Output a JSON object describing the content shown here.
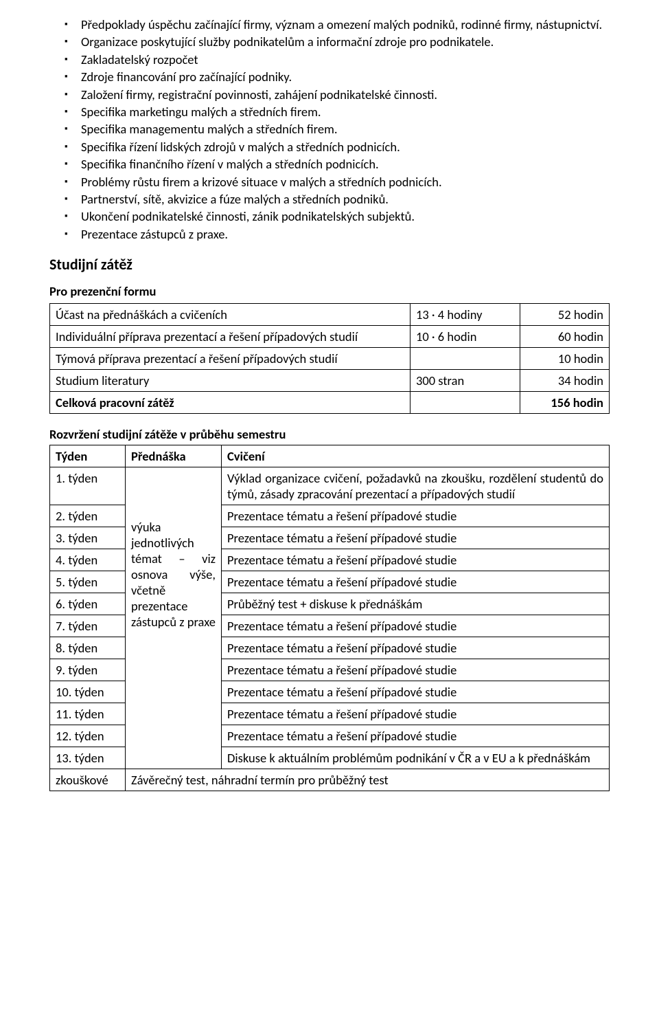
{
  "bullets": [
    "Předpoklady úspěchu začínající firmy, význam a omezení malých podniků, rodinné firmy, nástupnictví.",
    "Organizace poskytující služby podnikatelům a informační zdroje pro podnikatele.",
    "Zakladatelský rozpočet",
    "Zdroje financování pro začínající podniky.",
    "Založení firmy, registrační povinnosti, zahájení podnikatelské činnosti.",
    "Specifika marketingu malých a středních firem.",
    "Specifika managementu malých a středních firem.",
    "Specifika řízení lidských zdrojů v malých a středních podnicích.",
    "Specifika finančního řízení v malých a středních podnicích.",
    "Problémy růstu firem a krizové situace v malých a středních podnicích.",
    "Partnerství, sítě, akvizice a fúze malých a středních podniků.",
    "Ukončení podnikatelské činnosti, zánik podnikatelských subjektů.",
    "Prezentace zástupců z praxe."
  ],
  "section_load_title": "Studijní zátěž",
  "load_sub": "Pro prezenční formu",
  "load_table": {
    "rows": [
      {
        "label": "Účast na přednáškách a cvičeních",
        "mid": "13 · 4 hodiny",
        "right": "52 hodin",
        "bold": false
      },
      {
        "label": "Individuální příprava prezentací a řešení případových studií",
        "mid": "10 · 6 hodin",
        "right": "60 hodin",
        "bold": false
      },
      {
        "label": "Týmová příprava prezentací a řešení případových studií",
        "mid": "",
        "right": "10 hodin",
        "bold": false
      },
      {
        "label": "Studium literatury",
        "mid": "300 stran",
        "right": "34 hodin",
        "bold": false
      },
      {
        "label": "Celková pracovní zátěž",
        "mid": "",
        "right": "156 hodin",
        "bold": true
      }
    ]
  },
  "sched_caption": "Rozvržení studijní zátěže v průběhu semestru",
  "sched_headers": {
    "week": "Týden",
    "lecture": "Přednáška",
    "exercise": "Cvičení"
  },
  "lecture_merged": "výuka jednotlivých témat – viz osnova výše, včetně prezentace zástupců z praxe",
  "sched_rows": [
    {
      "week": "1. týden",
      "ex": "Výklad organizace cvičení, požadavků na zkoušku, rozdělení studentů do týmů, zásady zpracování prezentací a případových studií",
      "justify": true
    },
    {
      "week": "2. týden",
      "ex": "Prezentace tématu a řešení případové studie"
    },
    {
      "week": "3. týden",
      "ex": "Prezentace tématu a řešení případové studie"
    },
    {
      "week": "4. týden",
      "ex": "Prezentace tématu a řešení případové studie"
    },
    {
      "week": "5. týden",
      "ex": "Prezentace tématu a řešení případové studie"
    },
    {
      "week": "6. týden",
      "ex": "Průběžný test + diskuse k přednáškám"
    },
    {
      "week": "7. týden",
      "ex": "Prezentace tématu a řešení případové studie"
    },
    {
      "week": "8. týden",
      "ex": "Prezentace tématu a řešení případové studie"
    },
    {
      "week": "9. týden",
      "ex": "Prezentace tématu a řešení případové studie"
    },
    {
      "week": "10. týden",
      "ex": "Prezentace tématu a řešení případové studie"
    },
    {
      "week": "11. týden",
      "ex": "Prezentace tématu a řešení případové studie"
    },
    {
      "week": "12. týden",
      "ex": "Prezentace tématu a řešení případové studie"
    },
    {
      "week": "13. týden",
      "ex": "Diskuse k aktuálním problémům podnikání v ČR a v EU a k přednáškám",
      "justify": true
    }
  ],
  "sched_footer": {
    "week": "zkouškové",
    "ex": "Závěrečný test, náhradní termín pro průběžný test"
  }
}
